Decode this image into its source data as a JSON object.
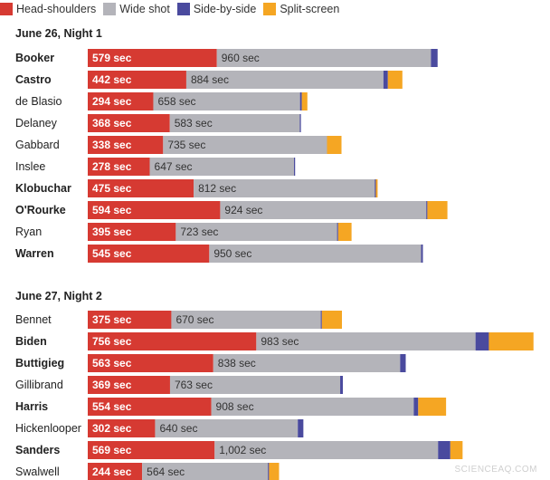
{
  "legend": [
    {
      "label": "Head-shoulders",
      "color": "#d63a32"
    },
    {
      "label": "Wide shot",
      "color": "#b4b4ba"
    },
    {
      "label": "Side-by-side",
      "color": "#4a4a9e"
    },
    {
      "label": "Split-screen",
      "color": "#f5a623"
    }
  ],
  "chart_data": [
    {
      "type": "bar",
      "stacked": true,
      "orientation": "horizontal",
      "title": "June 26, Night 1",
      "unit": "sec",
      "series_names": [
        "Head-shoulders",
        "Wide shot",
        "Side-by-side",
        "Split-screen"
      ],
      "rows": [
        {
          "name": "Booker",
          "bold": true,
          "values": [
            579,
            960,
            30,
            0
          ],
          "labels": [
            "579 sec",
            "960 sec"
          ]
        },
        {
          "name": "Castro",
          "bold": true,
          "values": [
            442,
            884,
            20,
            65
          ],
          "labels": [
            "442 sec",
            "884 sec"
          ]
        },
        {
          "name": "de Blasio",
          "bold": false,
          "values": [
            294,
            658,
            8,
            25
          ],
          "labels": [
            "294 sec",
            "658 sec"
          ]
        },
        {
          "name": "Delaney",
          "bold": false,
          "values": [
            368,
            583,
            5,
            0
          ],
          "labels": [
            "368 sec",
            "583 sec"
          ]
        },
        {
          "name": "Gabbard",
          "bold": false,
          "values": [
            338,
            735,
            0,
            65
          ],
          "labels": [
            "338 sec",
            "735 sec"
          ]
        },
        {
          "name": "Inslee",
          "bold": false,
          "values": [
            278,
            647,
            5,
            0
          ],
          "labels": [
            "278 sec",
            "647 sec"
          ]
        },
        {
          "name": "Klobuchar",
          "bold": true,
          "values": [
            475,
            812,
            5,
            8
          ],
          "labels": [
            "475 sec",
            "812 sec"
          ]
        },
        {
          "name": "O'Rourke",
          "bold": true,
          "values": [
            594,
            924,
            5,
            90
          ],
          "labels": [
            "594 sec",
            "924 sec"
          ]
        },
        {
          "name": "Ryan",
          "bold": false,
          "values": [
            395,
            723,
            5,
            60
          ],
          "labels": [
            "395 sec",
            "723 sec"
          ]
        },
        {
          "name": "Warren",
          "bold": true,
          "values": [
            545,
            950,
            8,
            0
          ],
          "labels": [
            "545 sec",
            "950 sec"
          ]
        }
      ]
    },
    {
      "type": "bar",
      "stacked": true,
      "orientation": "horizontal",
      "title": "June 27, Night 2",
      "unit": "sec",
      "series_names": [
        "Head-shoulders",
        "Wide shot",
        "Side-by-side",
        "Split-screen"
      ],
      "rows": [
        {
          "name": "Bennet",
          "bold": false,
          "values": [
            375,
            670,
            5,
            90
          ],
          "labels": [
            "375 sec",
            "670 sec"
          ]
        },
        {
          "name": "Biden",
          "bold": true,
          "values": [
            756,
            983,
            60,
            200
          ],
          "labels": [
            "756 sec",
            "983 sec"
          ]
        },
        {
          "name": "Buttigieg",
          "bold": true,
          "values": [
            563,
            838,
            25,
            0
          ],
          "labels": [
            "563 sec",
            "838 sec"
          ]
        },
        {
          "name": "Gillibrand",
          "bold": false,
          "values": [
            369,
            763,
            12,
            0
          ],
          "labels": [
            "369 sec",
            "763 sec"
          ]
        },
        {
          "name": "Harris",
          "bold": true,
          "values": [
            554,
            908,
            20,
            125
          ],
          "labels": [
            "554 sec",
            "908 sec"
          ]
        },
        {
          "name": "Hickenlooper",
          "bold": false,
          "values": [
            302,
            640,
            25,
            0
          ],
          "labels": [
            "302 sec",
            "640 sec"
          ]
        },
        {
          "name": "Sanders",
          "bold": true,
          "values": [
            569,
            1002,
            55,
            55
          ],
          "labels": [
            "569 sec",
            "1,002 sec"
          ]
        },
        {
          "name": "Swalwell",
          "bold": false,
          "values": [
            244,
            564,
            5,
            45
          ],
          "labels": [
            "244 sec",
            "564 sec"
          ]
        }
      ]
    }
  ],
  "watermark": "SCIENCEAQ.COM"
}
